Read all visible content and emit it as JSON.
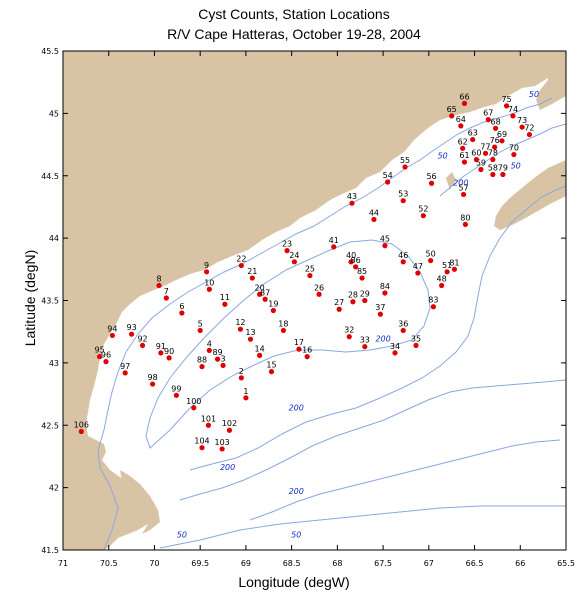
{
  "title": "Cyst Counts, Station Locations",
  "subtitle": "R/V Cape Hatteras, October 19-28, 2004",
  "xlabel": "Longitude (degW)",
  "ylabel": "Latitude (degN)",
  "colors": {
    "land": "#d8c4a4",
    "water": "#ffffff",
    "contour": "#8aa8e0",
    "station": "#e00000"
  },
  "axes": {
    "lon_range": [
      -71,
      -65.5
    ],
    "lat_range": [
      41.5,
      45.5
    ],
    "x_ticks": [
      -71,
      -70.5,
      -70,
      -69.5,
      -69,
      -68.5,
      -68,
      -67.5,
      -67,
      -66.5,
      -66,
      -65.5
    ],
    "x_tick_labels": [
      "71",
      "70.5",
      "70",
      "69.5",
      "69",
      "68.5",
      "68",
      "67.5",
      "67",
      "66.5",
      "66",
      "65.5"
    ],
    "y_ticks": [
      41.5,
      42,
      42.5,
      43,
      43.5,
      44,
      44.5,
      45,
      45.5
    ],
    "y_tick_labels": [
      "41.5",
      "42",
      "42.5",
      "43",
      "43.5",
      "44",
      "44.5",
      "45",
      "45.5"
    ]
  },
  "contour_labels": [
    {
      "text": "50",
      "lon": -65.85,
      "lat": 45.13
    },
    {
      "text": "50",
      "lon": -66.05,
      "lat": 44.56
    },
    {
      "text": "50",
      "lon": -66.85,
      "lat": 44.64
    },
    {
      "text": "200",
      "lon": -66.65,
      "lat": 44.42
    },
    {
      "text": "200",
      "lon": -67.5,
      "lat": 43.17
    },
    {
      "text": "200",
      "lon": -68.45,
      "lat": 42.62
    },
    {
      "text": "200",
      "lon": -69.2,
      "lat": 42.14
    },
    {
      "text": "200",
      "lon": -68.45,
      "lat": 41.95
    },
    {
      "text": "50",
      "lon": -69.7,
      "lat": 41.6
    },
    {
      "text": "50",
      "lon": -68.45,
      "lat": 41.6
    }
  ],
  "chart_data": {
    "type": "scatter",
    "title": "Cyst Counts, Station Locations",
    "subtitle": "R/V Cape Hatteras, October 19-28, 2004",
    "xlabel": "Longitude (degW)",
    "ylabel": "Latitude (degN)",
    "xlim": [
      -71,
      -65.5
    ],
    "ylim": [
      41.5,
      45.5
    ],
    "grid": false,
    "stations": [
      {
        "id": "1",
        "lon": -69.0,
        "lat": 42.72
      },
      {
        "id": "2",
        "lon": -69.05,
        "lat": 42.88
      },
      {
        "id": "3",
        "lon": -69.25,
        "lat": 42.98
      },
      {
        "id": "4",
        "lon": -69.4,
        "lat": 43.1
      },
      {
        "id": "5",
        "lon": -69.5,
        "lat": 43.26
      },
      {
        "id": "6",
        "lon": -69.7,
        "lat": 43.4
      },
      {
        "id": "7",
        "lon": -69.87,
        "lat": 43.52
      },
      {
        "id": "8",
        "lon": -69.95,
        "lat": 43.62
      },
      {
        "id": "9",
        "lon": -69.43,
        "lat": 43.73
      },
      {
        "id": "10",
        "lon": -69.4,
        "lat": 43.59
      },
      {
        "id": "11",
        "lon": -69.23,
        "lat": 43.47
      },
      {
        "id": "12",
        "lon": -69.06,
        "lat": 43.27
      },
      {
        "id": "13",
        "lon": -68.95,
        "lat": 43.19
      },
      {
        "id": "14",
        "lon": -68.85,
        "lat": 43.06
      },
      {
        "id": "15",
        "lon": -68.72,
        "lat": 42.93
      },
      {
        "id": "16",
        "lon": -68.33,
        "lat": 43.05
      },
      {
        "id": "17",
        "lon": -68.42,
        "lat": 43.11
      },
      {
        "id": "18",
        "lon": -68.59,
        "lat": 43.26
      },
      {
        "id": "19",
        "lon": -68.7,
        "lat": 43.42
      },
      {
        "id": "20",
        "lon": -68.85,
        "lat": 43.55
      },
      {
        "id": "21",
        "lon": -68.93,
        "lat": 43.68
      },
      {
        "id": "22",
        "lon": -69.05,
        "lat": 43.78
      },
      {
        "id": "23",
        "lon": -68.55,
        "lat": 43.9
      },
      {
        "id": "24",
        "lon": -68.47,
        "lat": 43.81
      },
      {
        "id": "25",
        "lon": -68.3,
        "lat": 43.7
      },
      {
        "id": "26",
        "lon": -68.2,
        "lat": 43.55
      },
      {
        "id": "27",
        "lon": -67.98,
        "lat": 43.43
      },
      {
        "id": "28",
        "lon": -67.83,
        "lat": 43.49
      },
      {
        "id": "29",
        "lon": -67.7,
        "lat": 43.5
      },
      {
        "id": "32",
        "lon": -67.87,
        "lat": 43.21
      },
      {
        "id": "33",
        "lon": -67.7,
        "lat": 43.13
      },
      {
        "id": "34",
        "lon": -67.37,
        "lat": 43.08
      },
      {
        "id": "35",
        "lon": -67.14,
        "lat": 43.14
      },
      {
        "id": "36",
        "lon": -67.28,
        "lat": 43.26
      },
      {
        "id": "37",
        "lon": -67.53,
        "lat": 43.39
      },
      {
        "id": "40",
        "lon": -67.85,
        "lat": 43.81
      },
      {
        "id": "41",
        "lon": -68.04,
        "lat": 43.93
      },
      {
        "id": "43",
        "lon": -67.84,
        "lat": 44.28
      },
      {
        "id": "44",
        "lon": -67.6,
        "lat": 44.15
      },
      {
        "id": "45",
        "lon": -67.48,
        "lat": 43.94
      },
      {
        "id": "46",
        "lon": -67.28,
        "lat": 43.81
      },
      {
        "id": "47",
        "lon": -67.12,
        "lat": 43.72
      },
      {
        "id": "48",
        "lon": -66.86,
        "lat": 43.62
      },
      {
        "id": "50",
        "lon": -66.98,
        "lat": 43.82
      },
      {
        "id": "51",
        "lon": -66.8,
        "lat": 43.73
      },
      {
        "id": "52",
        "lon": -67.06,
        "lat": 44.18
      },
      {
        "id": "53",
        "lon": -67.28,
        "lat": 44.3
      },
      {
        "id": "54",
        "lon": -67.45,
        "lat": 44.45
      },
      {
        "id": "55",
        "lon": -67.26,
        "lat": 44.57
      },
      {
        "id": "56",
        "lon": -66.97,
        "lat": 44.44
      },
      {
        "id": "57",
        "lon": -66.62,
        "lat": 44.35
      },
      {
        "id": "58",
        "lon": -66.3,
        "lat": 44.51
      },
      {
        "id": "59",
        "lon": -66.43,
        "lat": 44.55
      },
      {
        "id": "60",
        "lon": -66.48,
        "lat": 44.63
      },
      {
        "id": "61",
        "lon": -66.61,
        "lat": 44.61
      },
      {
        "id": "62",
        "lon": -66.63,
        "lat": 44.72
      },
      {
        "id": "63",
        "lon": -66.52,
        "lat": 44.79
      },
      {
        "id": "64",
        "lon": -66.65,
        "lat": 44.9
      },
      {
        "id": "65",
        "lon": -66.75,
        "lat": 44.98
      },
      {
        "id": "66",
        "lon": -66.61,
        "lat": 45.08
      },
      {
        "id": "67",
        "lon": -66.35,
        "lat": 44.95
      },
      {
        "id": "68",
        "lon": -66.27,
        "lat": 44.88
      },
      {
        "id": "69",
        "lon": -66.2,
        "lat": 44.78
      },
      {
        "id": "70",
        "lon": -66.07,
        "lat": 44.67
      },
      {
        "id": "72",
        "lon": -65.9,
        "lat": 44.83
      },
      {
        "id": "73",
        "lon": -65.98,
        "lat": 44.89
      },
      {
        "id": "74",
        "lon": -66.08,
        "lat": 44.98
      },
      {
        "id": "75",
        "lon": -66.15,
        "lat": 45.06
      },
      {
        "id": "76",
        "lon": -66.28,
        "lat": 44.73
      },
      {
        "id": "77",
        "lon": -66.38,
        "lat": 44.68
      },
      {
        "id": "78",
        "lon": -66.3,
        "lat": 44.63
      },
      {
        "id": "79",
        "lon": -66.19,
        "lat": 44.51
      },
      {
        "id": "80",
        "lon": -66.6,
        "lat": 44.11
      },
      {
        "id": "81",
        "lon": -66.72,
        "lat": 43.75
      },
      {
        "id": "83",
        "lon": -66.95,
        "lat": 43.45
      },
      {
        "id": "84",
        "lon": -67.48,
        "lat": 43.56
      },
      {
        "id": "85",
        "lon": -67.73,
        "lat": 43.68
      },
      {
        "id": "86",
        "lon": -67.8,
        "lat": 43.77
      },
      {
        "id": "87",
        "lon": -68.79,
        "lat": 43.51
      },
      {
        "id": "88",
        "lon": -69.48,
        "lat": 42.97
      },
      {
        "id": "89",
        "lon": -69.31,
        "lat": 43.03
      },
      {
        "id": "90",
        "lon": -69.84,
        "lat": 43.04
      },
      {
        "id": "91",
        "lon": -69.93,
        "lat": 43.08
      },
      {
        "id": "92",
        "lon": -70.13,
        "lat": 43.14
      },
      {
        "id": "93",
        "lon": -70.25,
        "lat": 43.23
      },
      {
        "id": "94",
        "lon": -70.46,
        "lat": 43.22
      },
      {
        "id": "95",
        "lon": -70.6,
        "lat": 43.05
      },
      {
        "id": "96",
        "lon": -70.53,
        "lat": 43.01
      },
      {
        "id": "97",
        "lon": -70.32,
        "lat": 42.92
      },
      {
        "id": "98",
        "lon": -70.02,
        "lat": 42.83
      },
      {
        "id": "99",
        "lon": -69.76,
        "lat": 42.74
      },
      {
        "id": "100",
        "lon": -69.57,
        "lat": 42.64
      },
      {
        "id": "101",
        "lon": -69.41,
        "lat": 42.5
      },
      {
        "id": "102",
        "lon": -69.18,
        "lat": 42.46
      },
      {
        "id": "103",
        "lon": -69.26,
        "lat": 42.31
      },
      {
        "id": "104",
        "lon": -69.48,
        "lat": 42.32
      },
      {
        "id": "106",
        "lon": -70.8,
        "lat": 42.45
      }
    ]
  }
}
